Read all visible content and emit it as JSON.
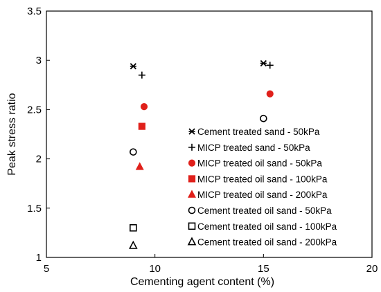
{
  "chart_data": {
    "type": "scatter",
    "xlabel": "Cementing agent content (%)",
    "ylabel": "Peak stress ratio",
    "xlim": [
      5,
      20
    ],
    "ylim": [
      1,
      3.5
    ],
    "xticks": [
      5,
      10,
      15,
      20
    ],
    "yticks": [
      1,
      1.5,
      2,
      2.5,
      3,
      3.5
    ],
    "xtick_labels": [
      "5",
      "10",
      "15",
      "20"
    ],
    "ytick_labels": [
      "1",
      "1.5",
      "2",
      "2.5",
      "3",
      "3.5"
    ],
    "grid": false,
    "legend_position": "inside-right",
    "series": [
      {
        "name": "Cement treated sand - 50kPa",
        "marker": "asterisk",
        "color": "#000000",
        "filled": false,
        "points": [
          {
            "x": 9.0,
            "y": 2.94
          },
          {
            "x": 15.0,
            "y": 2.97
          }
        ]
      },
      {
        "name": "MICP treated sand - 50kPa",
        "marker": "plus",
        "color": "#000000",
        "filled": false,
        "points": [
          {
            "x": 9.4,
            "y": 2.85
          },
          {
            "x": 15.3,
            "y": 2.95
          }
        ]
      },
      {
        "name": "MICP treated oil sand - 50kPa",
        "marker": "circle",
        "color": "#e0201b",
        "filled": true,
        "points": [
          {
            "x": 9.5,
            "y": 2.53
          },
          {
            "x": 15.3,
            "y": 2.66
          }
        ]
      },
      {
        "name": "MICP treated oil sand - 100kPa",
        "marker": "square",
        "color": "#e0201b",
        "filled": true,
        "points": [
          {
            "x": 9.4,
            "y": 2.33
          }
        ]
      },
      {
        "name": "MICP treated oil sand - 200kPa",
        "marker": "triangle",
        "color": "#e0201b",
        "filled": true,
        "points": [
          {
            "x": 9.3,
            "y": 1.92
          }
        ]
      },
      {
        "name": "Cement treated oil sand - 50kPa",
        "marker": "circle",
        "color": "#000000",
        "filled": false,
        "points": [
          {
            "x": 9.0,
            "y": 2.07
          },
          {
            "x": 15.0,
            "y": 2.41
          }
        ]
      },
      {
        "name": "Cement treated oil sand - 100kPa",
        "marker": "square",
        "color": "#000000",
        "filled": false,
        "points": [
          {
            "x": 9.0,
            "y": 1.3
          }
        ]
      },
      {
        "name": "Cement treated oil sand - 200kPa",
        "marker": "triangle",
        "color": "#000000",
        "filled": false,
        "points": [
          {
            "x": 9.0,
            "y": 1.12
          }
        ]
      }
    ]
  }
}
